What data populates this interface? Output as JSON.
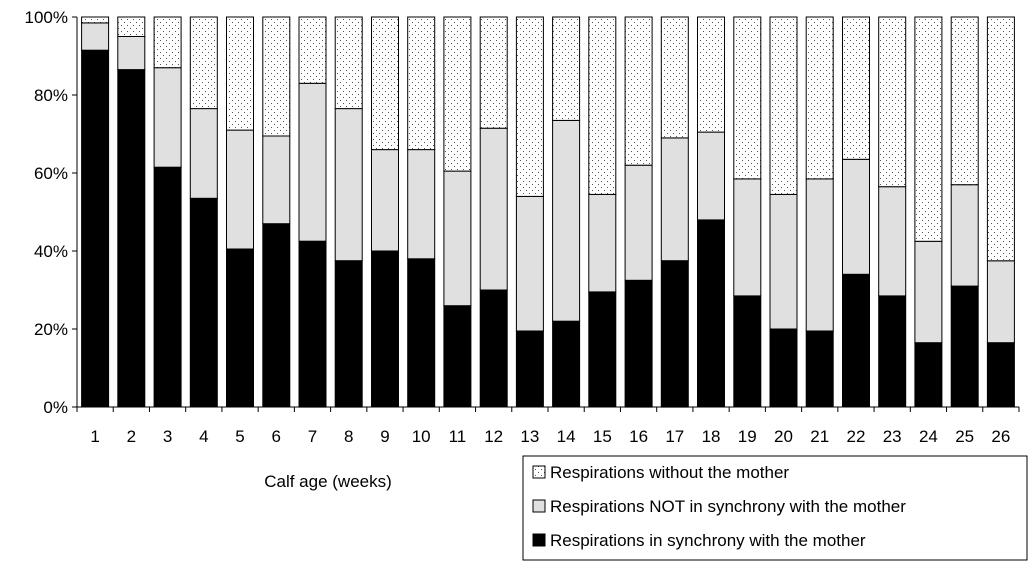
{
  "chart_data": {
    "type": "bar",
    "stacked": true,
    "normalized": true,
    "xlabel": "Calf age (weeks)",
    "ylabel": "",
    "ylim": [
      0,
      100
    ],
    "yticks": [
      "0%",
      "20%",
      "40%",
      "60%",
      "80%",
      "100%"
    ],
    "categories": [
      "1",
      "2",
      "3",
      "4",
      "5",
      "6",
      "7",
      "8",
      "9",
      "10",
      "11",
      "12",
      "13",
      "14",
      "15",
      "16",
      "17",
      "18",
      "19",
      "20",
      "21",
      "22",
      "23",
      "24",
      "25",
      "26"
    ],
    "series": [
      {
        "name": "Respirations in synchrony with the mother",
        "values": [
          91.5,
          86.5,
          61.5,
          53.5,
          40.5,
          47,
          42.5,
          37.5,
          40,
          38,
          26,
          30,
          19.5,
          22,
          29.5,
          32.5,
          37.5,
          48,
          28.5,
          20,
          19.5,
          34,
          28.5,
          16.5,
          31,
          16.5
        ]
      },
      {
        "name": "Respirations NOT in synchrony with the mother",
        "values": [
          7,
          8.5,
          25.5,
          23,
          30.5,
          22.5,
          40.5,
          39,
          26,
          28,
          34.5,
          41.5,
          34.5,
          51.5,
          25,
          29.5,
          31.5,
          22.5,
          30,
          34.5,
          39,
          29.5,
          28,
          26,
          26,
          21
        ]
      },
      {
        "name": "Respirations without the mother",
        "values": [
          1.5,
          5,
          13,
          23.5,
          29,
          30.5,
          17,
          23.5,
          34,
          34,
          39.5,
          28.5,
          46,
          26.5,
          45.5,
          38,
          31,
          29.5,
          41.5,
          45.5,
          41.5,
          36.5,
          43.5,
          57.5,
          43,
          62.5
        ]
      }
    ],
    "legend_position": "bottom-right",
    "grid": false,
    "colors": {
      "synchrony": "#000000",
      "not_synchrony": "#e0e0e0",
      "without": "#ffffff",
      "stipple": "#555555"
    }
  }
}
